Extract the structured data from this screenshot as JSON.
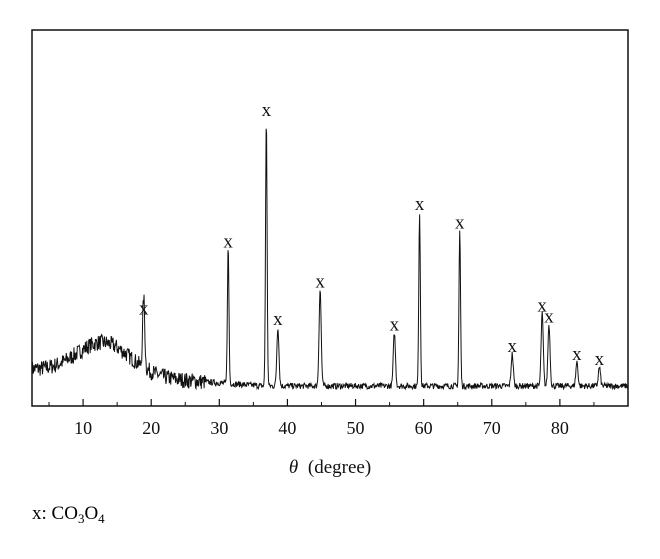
{
  "chart_data": {
    "type": "line",
    "xlabel_symbol": "θ",
    "xlabel_unit": "(degree)",
    "xlim": [
      2.5,
      90
    ],
    "ylim": [
      0,
      100
    ],
    "y_ticks_labeled": false,
    "grid": false,
    "x_ticks": [
      10,
      20,
      30,
      40,
      50,
      60,
      70,
      80
    ],
    "x_tick_labels": [
      "10",
      "20",
      "30",
      "40",
      "50",
      "60",
      "70",
      "80"
    ],
    "peaks": [
      {
        "x": 18.9,
        "y": 26,
        "label": "x"
      },
      {
        "x": 31.3,
        "y": 51,
        "label": "x"
      },
      {
        "x": 36.9,
        "y": 100,
        "label": "x"
      },
      {
        "x": 38.6,
        "y": 22,
        "label": "x"
      },
      {
        "x": 44.8,
        "y": 36,
        "label": "x"
      },
      {
        "x": 55.7,
        "y": 20,
        "label": "x"
      },
      {
        "x": 59.4,
        "y": 65,
        "label": "x"
      },
      {
        "x": 65.3,
        "y": 58,
        "label": "x"
      },
      {
        "x": 73.0,
        "y": 12,
        "label": "x"
      },
      {
        "x": 77.4,
        "y": 27,
        "label": "x"
      },
      {
        "x": 78.4,
        "y": 23,
        "label": "x"
      },
      {
        "x": 82.5,
        "y": 9,
        "label": "x"
      },
      {
        "x": 85.8,
        "y": 7,
        "label": "x"
      }
    ],
    "series_color": "#111111"
  },
  "legend": {
    "marker": "x:",
    "formula_parts": [
      "CO",
      "3",
      "O",
      "4"
    ]
  }
}
